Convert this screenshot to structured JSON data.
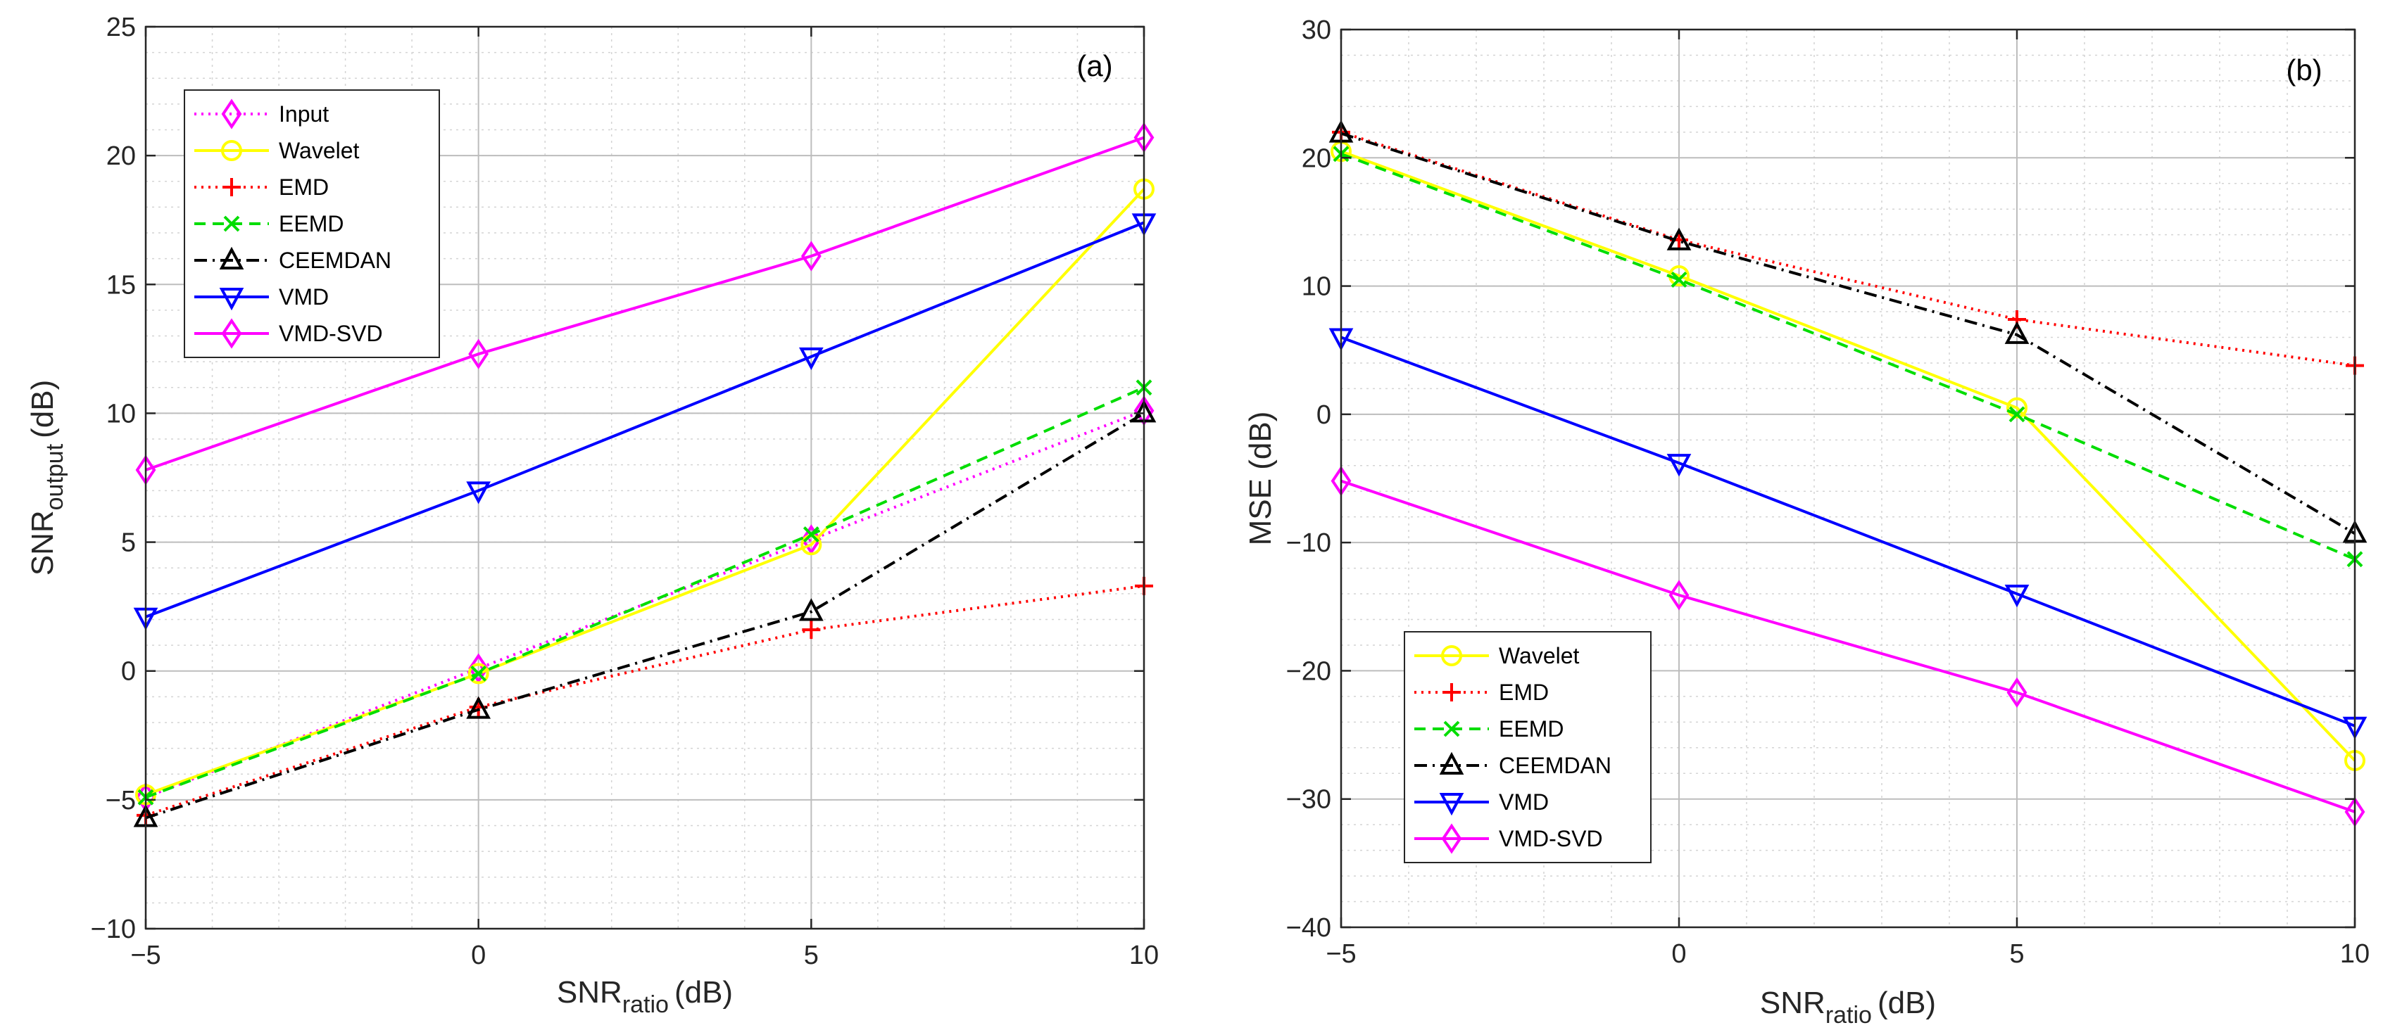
{
  "chart_data": [
    {
      "type": "line",
      "panel": "(a)",
      "x": [
        -5,
        0,
        5,
        10
      ],
      "xlabel": {
        "main": "SNR",
        "sub": "ratio",
        "unit": "(dB)"
      },
      "ylabel": {
        "main": "SNR",
        "sub": "output",
        "unit": "(dB)"
      },
      "xlim": [
        -5,
        10
      ],
      "ylim": [
        -10,
        25
      ],
      "xticks": [
        "−5",
        "0",
        "5",
        "10"
      ],
      "yticks": [
        "−10",
        "−5",
        "0",
        "5",
        "10",
        "15",
        "20",
        "25"
      ],
      "grid": true,
      "legend_position": "top-left",
      "series": [
        {
          "name": "Input",
          "values": [
            -4.9,
            0.1,
            5.1,
            10.1
          ],
          "color": "#ff00ff",
          "style": "dotted",
          "marker": "diamond"
        },
        {
          "name": "Wavelet",
          "values": [
            -4.8,
            -0.1,
            4.9,
            18.7
          ],
          "color": "#ffff00",
          "style": "solid",
          "marker": "circle"
        },
        {
          "name": "EMD",
          "values": [
            -5.6,
            -1.4,
            1.6,
            3.3
          ],
          "color": "#ff0000",
          "style": "dotted",
          "marker": "plus"
        },
        {
          "name": "EEMD",
          "values": [
            -4.9,
            -0.1,
            5.3,
            11.0
          ],
          "color": "#00dd00",
          "style": "dashed",
          "marker": "x"
        },
        {
          "name": "CEEMDAN",
          "values": [
            -5.7,
            -1.5,
            2.3,
            10.0
          ],
          "color": "#000000",
          "style": "dashdot",
          "marker": "triangle-up"
        },
        {
          "name": "VMD",
          "values": [
            2.1,
            7.0,
            12.2,
            17.4
          ],
          "color": "#0000ff",
          "style": "solid",
          "marker": "triangle-down"
        },
        {
          "name": "VMD-SVD",
          "values": [
            7.8,
            12.3,
            16.1,
            20.7
          ],
          "color": "#ff00ff",
          "style": "solid",
          "marker": "diamond"
        }
      ]
    },
    {
      "type": "line",
      "panel": "(b)",
      "x": [
        -5,
        0,
        5,
        10
      ],
      "xlabel": {
        "main": "SNR",
        "sub": "ratio",
        "unit": "(dB)"
      },
      "ylabel": {
        "main": "MSE (dB)",
        "sub": "",
        "unit": ""
      },
      "xlim": [
        -5,
        10
      ],
      "ylim": [
        -40,
        30
      ],
      "xticks": [
        "−5",
        "0",
        "5",
        "10"
      ],
      "yticks": [
        "−40",
        "−30",
        "−20",
        "−10",
        "0",
        "10",
        "20",
        "30"
      ],
      "grid": true,
      "legend_position": "bottom-left",
      "series": [
        {
          "name": "Wavelet",
          "values": [
            20.5,
            10.8,
            0.5,
            -27.0
          ],
          "color": "#ffff00",
          "style": "solid",
          "marker": "circle"
        },
        {
          "name": "EMD",
          "values": [
            22.0,
            13.6,
            7.4,
            3.8
          ],
          "color": "#ff0000",
          "style": "dotted",
          "marker": "plus"
        },
        {
          "name": "EEMD",
          "values": [
            20.3,
            10.5,
            0.0,
            -11.3
          ],
          "color": "#00dd00",
          "style": "dashed",
          "marker": "x"
        },
        {
          "name": "CEEMDAN",
          "values": [
            21.9,
            13.5,
            6.2,
            -9.3
          ],
          "color": "#000000",
          "style": "dashdot",
          "marker": "triangle-up"
        },
        {
          "name": "VMD",
          "values": [
            6.0,
            -3.8,
            -14.0,
            -24.3
          ],
          "color": "#0000ff",
          "style": "solid",
          "marker": "triangle-down"
        },
        {
          "name": "VMD-SVD",
          "values": [
            -5.2,
            -14.1,
            -21.7,
            -31.0
          ],
          "color": "#ff00ff",
          "style": "solid",
          "marker": "diamond"
        }
      ]
    }
  ]
}
